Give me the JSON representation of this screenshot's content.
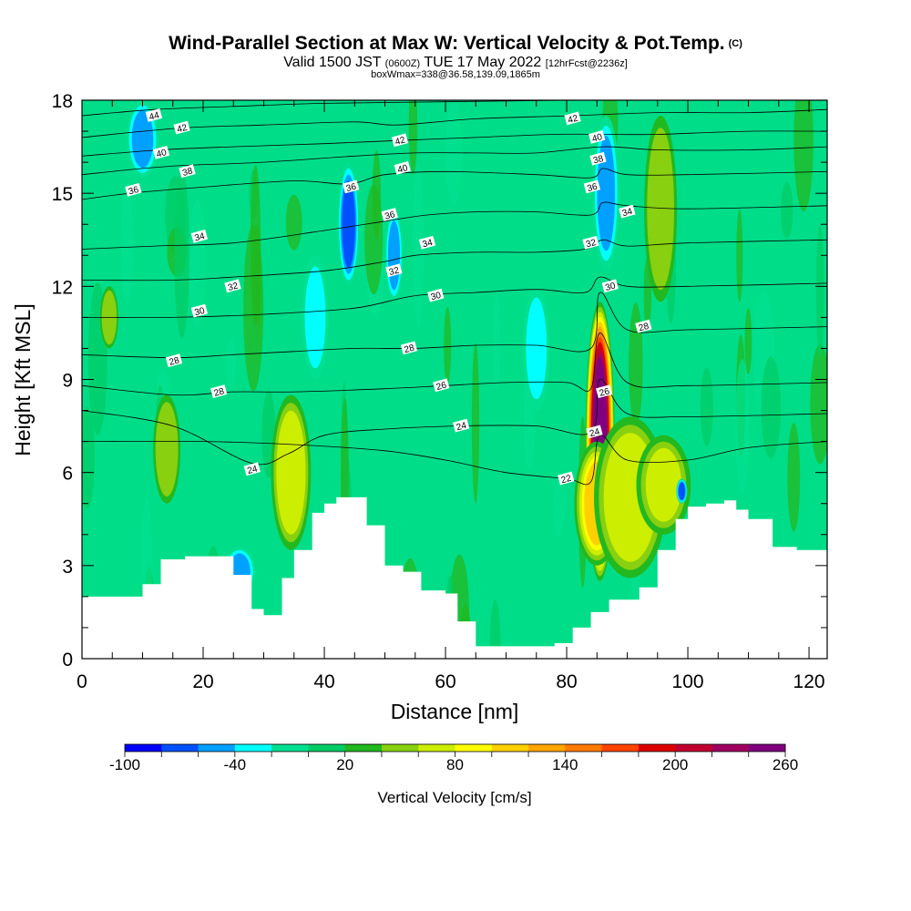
{
  "header": {
    "title": "Wind-Parallel Section at Max W: Vertical Velocity & Pot.Temp.",
    "copyright": "(C)",
    "valid_prefix": "Valid 1500 JST",
    "valid_utc": "(0600Z)",
    "valid_date": "TUE 17 May 2022",
    "forecast": "[12hrFcst@2236z]",
    "box_info": "boxWmax=338@36.58,139.09,1865m"
  },
  "chart_data": {
    "type": "heatmap",
    "title": "Wind-Parallel Section at Max W: Vertical Velocity & Pot.Temp.",
    "xlabel": "Distance [nm]",
    "ylabel": "Height [Kft MSL]",
    "xlim": [
      0,
      123
    ],
    "ylim": [
      0,
      18
    ],
    "x_ticks": [
      0,
      20,
      40,
      60,
      80,
      100,
      120
    ],
    "y_ticks": [
      0,
      3,
      6,
      9,
      12,
      15,
      18
    ],
    "grid": false,
    "colorbar": {
      "title": "Vertical Velocity [cm/s]",
      "tick_labels": [
        "-100",
        "-40",
        "20",
        "80",
        "140",
        "200",
        "260"
      ],
      "colors": [
        "#0000ff",
        "#0050ff",
        "#00a0ff",
        "#00ffff",
        "#00e090",
        "#00cc66",
        "#22b820",
        "#88d010",
        "#ccee00",
        "#ffff00",
        "#ffd000",
        "#ffa500",
        "#ff7a00",
        "#ff4400",
        "#dd0000",
        "#c00030",
        "#a00060",
        "#800080"
      ]
    },
    "terrain": {
      "x": [
        0,
        5,
        10,
        13,
        17,
        22,
        25,
        28,
        30,
        33,
        35,
        38,
        40,
        42,
        45,
        47,
        50,
        53,
        56,
        60,
        62,
        65,
        68,
        72,
        75,
        78,
        81,
        84,
        87,
        90,
        92,
        95,
        98,
        100,
        103,
        106,
        108,
        110,
        114,
        118,
        123
      ],
      "height": [
        2.0,
        2.0,
        2.4,
        3.2,
        3.3,
        3.3,
        2.7,
        1.6,
        1.4,
        2.6,
        3.5,
        4.7,
        5.0,
        5.2,
        5.2,
        4.3,
        3.0,
        2.8,
        2.2,
        2.1,
        1.2,
        0.4,
        0.4,
        0.4,
        0.4,
        0.5,
        1.0,
        1.5,
        1.9,
        1.9,
        2.3,
        3.5,
        4.5,
        4.9,
        5.0,
        5.1,
        4.8,
        4.5,
        3.6,
        3.5,
        3.5
      ]
    },
    "vertical_velocity_features": [
      {
        "x": 85.5,
        "y_bottom": 2.5,
        "y_top": 11.5,
        "width": 1.6,
        "value": 240
      },
      {
        "x": 85.0,
        "y_bottom": 3.0,
        "y_top": 7.0,
        "width": 2.5,
        "value": 100
      },
      {
        "x": 90.5,
        "y_bottom": 2.6,
        "y_top": 7.8,
        "width": 4.0,
        "value": 70
      },
      {
        "x": 96.0,
        "y_bottom": 4.0,
        "y_top": 7.2,
        "width": 3.0,
        "value": 60
      },
      {
        "x": 34.5,
        "y_bottom": 3.5,
        "y_top": 8.5,
        "width": 2.2,
        "value": 70
      },
      {
        "x": 14.0,
        "y_bottom": 5.0,
        "y_top": 8.5,
        "width": 1.5,
        "value": 45
      },
      {
        "x": 4.5,
        "y_bottom": 10.0,
        "y_top": 12.0,
        "width": 1.0,
        "value": 45
      },
      {
        "x": 95.5,
        "y_bottom": 11.5,
        "y_top": 17.5,
        "width": 1.8,
        "value": 45
      },
      {
        "x": 44.0,
        "y_bottom": 12.0,
        "y_top": 16.0,
        "width": 1.2,
        "value": -80
      },
      {
        "x": 51.5,
        "y_bottom": 11.5,
        "y_top": 14.5,
        "width": 1.0,
        "value": -60
      },
      {
        "x": 86.5,
        "y_bottom": 12.5,
        "y_top": 17.5,
        "width": 1.5,
        "value": -60
      },
      {
        "x": 10.0,
        "y_bottom": 15.5,
        "y_top": 18.0,
        "width": 1.8,
        "value": -50
      },
      {
        "x": 26.0,
        "y_bottom": 2.0,
        "y_top": 3.6,
        "width": 1.8,
        "value": -60
      },
      {
        "x": 99.0,
        "y_bottom": 5.0,
        "y_top": 5.8,
        "width": 0.6,
        "value": -80
      },
      {
        "x": 38.5,
        "y_bottom": 9.0,
        "y_top": 13.0,
        "width": 1.5,
        "value": -30
      },
      {
        "x": 75.0,
        "y_bottom": 8.0,
        "y_top": 12.0,
        "width": 1.5,
        "value": -30
      }
    ],
    "theta_contours": [
      {
        "level": "22",
        "x": [
          0,
          20,
          35,
          50,
          60,
          70,
          80,
          84,
          85.5,
          90,
          100,
          110,
          123
        ],
        "height": [
          7.0,
          7.0,
          6.9,
          6.7,
          6.4,
          6.0,
          5.8,
          5.7,
          7.2,
          6.4,
          6.4,
          6.8,
          7.0
        ]
      },
      {
        "level": "24",
        "x": [
          0,
          15,
          28,
          34,
          40,
          50,
          62,
          75,
          84,
          85.5,
          90,
          100,
          123
        ],
        "height": [
          8.0,
          7.5,
          6.3,
          6.6,
          7.2,
          7.4,
          7.5,
          7.5,
          7.3,
          9.0,
          7.9,
          7.8,
          7.9
        ]
      },
      {
        "level": "26",
        "x": [
          0,
          15,
          25,
          35,
          50,
          60,
          70,
          80,
          84,
          85.5,
          90,
          100,
          123
        ],
        "height": [
          8.8,
          8.5,
          8.6,
          8.6,
          8.7,
          8.8,
          8.9,
          8.9,
          8.7,
          10.5,
          8.9,
          8.8,
          8.9
        ]
      },
      {
        "level": "28",
        "x": [
          0,
          15,
          25,
          35,
          45,
          55,
          65,
          75,
          84,
          85.5,
          90,
          100,
          123
        ],
        "height": [
          9.8,
          9.7,
          9.8,
          9.9,
          10.0,
          10.0,
          10.1,
          10.1,
          10.0,
          11.8,
          10.6,
          10.6,
          10.7
        ]
      },
      {
        "level": "30",
        "x": [
          0,
          15,
          30,
          45,
          55,
          65,
          75,
          83,
          85.5,
          90,
          100,
          123
        ],
        "height": [
          11.0,
          11.0,
          11.1,
          11.3,
          11.7,
          11.8,
          11.9,
          11.8,
          12.3,
          12.0,
          12.0,
          12.1
        ]
      },
      {
        "level": "32",
        "x": [
          0,
          15,
          25,
          40,
          50,
          55,
          65,
          75,
          83,
          86,
          90,
          100,
          123
        ],
        "height": [
          12.2,
          12.2,
          12.3,
          12.5,
          12.8,
          13.0,
          13.1,
          13.1,
          13.2,
          13.5,
          13.3,
          13.4,
          13.5
        ]
      },
      {
        "level": "34",
        "x": [
          0,
          12,
          25,
          40,
          50,
          57,
          65,
          75,
          84,
          86,
          90,
          100,
          123
        ],
        "height": [
          13.2,
          13.3,
          13.4,
          13.8,
          14.1,
          14.3,
          14.4,
          14.4,
          14.3,
          14.7,
          14.6,
          14.5,
          14.6
        ]
      },
      {
        "level": "36",
        "x": [
          0,
          8,
          20,
          35,
          44,
          50,
          60,
          75,
          84,
          86,
          90,
          100,
          123
        ],
        "height": [
          14.8,
          15.0,
          15.2,
          15.4,
          15.3,
          15.6,
          15.7,
          15.6,
          15.5,
          15.8,
          15.6,
          15.6,
          15.7
        ]
      },
      {
        "level": "38",
        "x": [
          0,
          10,
          17,
          30,
          45,
          55,
          65,
          75,
          86,
          95,
          110,
          123
        ],
        "height": [
          15.6,
          15.8,
          15.9,
          16.0,
          16.2,
          16.3,
          16.3,
          16.3,
          16.5,
          16.4,
          16.4,
          16.5
        ]
      },
      {
        "level": "40",
        "x": [
          0,
          13,
          25,
          40,
          52,
          65,
          78,
          86,
          95,
          110,
          123
        ],
        "height": [
          16.2,
          16.4,
          16.5,
          16.6,
          16.7,
          16.8,
          16.9,
          16.9,
          16.9,
          17.0,
          17.0
        ]
      },
      {
        "level": "42",
        "x": [
          0,
          16,
          30,
          45,
          52,
          65,
          81,
          95,
          110,
          123
        ],
        "height": [
          16.8,
          17.1,
          17.2,
          17.3,
          17.2,
          17.4,
          17.5,
          17.6,
          17.6,
          17.7
        ]
      },
      {
        "level": "44",
        "x": [
          0,
          12,
          25,
          40,
          60,
          80,
          100,
          123
        ],
        "height": [
          17.5,
          17.7,
          17.8,
          17.9,
          17.95,
          18.0,
          18.0,
          18.0
        ]
      }
    ],
    "contour_labels": [
      {
        "text": "44",
        "x": 11.9,
        "y": 17.5
      },
      {
        "text": "42",
        "x": 16.5,
        "y": 17.1
      },
      {
        "text": "40",
        "x": 13.1,
        "y": 16.3
      },
      {
        "text": "38",
        "x": 17.4,
        "y": 15.7
      },
      {
        "text": "36",
        "x": 8.5,
        "y": 15.1
      },
      {
        "text": "34",
        "x": 19.4,
        "y": 13.6
      },
      {
        "text": "32",
        "x": 24.9,
        "y": 12.0
      },
      {
        "text": "30",
        "x": 19.4,
        "y": 11.2
      },
      {
        "text": "28",
        "x": 15.2,
        "y": 9.6
      },
      {
        "text": "28",
        "x": 22.6,
        "y": 8.6
      },
      {
        "text": "24",
        "x": 28.1,
        "y": 6.1
      },
      {
        "text": "36",
        "x": 44.4,
        "y": 15.2
      },
      {
        "text": "36",
        "x": 50.8,
        "y": 14.3
      },
      {
        "text": "42",
        "x": 52.5,
        "y": 16.7
      },
      {
        "text": "40",
        "x": 52.9,
        "y": 15.8
      },
      {
        "text": "34",
        "x": 57.0,
        "y": 13.4
      },
      {
        "text": "32",
        "x": 51.5,
        "y": 12.5
      },
      {
        "text": "30",
        "x": 58.4,
        "y": 11.7
      },
      {
        "text": "28",
        "x": 54.0,
        "y": 10.0
      },
      {
        "text": "26",
        "x": 59.3,
        "y": 8.8
      },
      {
        "text": "24",
        "x": 62.6,
        "y": 7.5
      },
      {
        "text": "22",
        "x": 79.9,
        "y": 5.8
      },
      {
        "text": "42",
        "x": 81.0,
        "y": 17.4
      },
      {
        "text": "40",
        "x": 85.0,
        "y": 16.8
      },
      {
        "text": "38",
        "x": 85.2,
        "y": 16.1
      },
      {
        "text": "36",
        "x": 84.2,
        "y": 15.2
      },
      {
        "text": "34",
        "x": 90.0,
        "y": 14.4
      },
      {
        "text": "32",
        "x": 84.0,
        "y": 13.4
      },
      {
        "text": "30",
        "x": 87.2,
        "y": 12.0
      },
      {
        "text": "28",
        "x": 92.7,
        "y": 10.7
      },
      {
        "text": "26",
        "x": 86.2,
        "y": 8.6
      },
      {
        "text": "24",
        "x": 84.6,
        "y": 7.3
      }
    ]
  }
}
